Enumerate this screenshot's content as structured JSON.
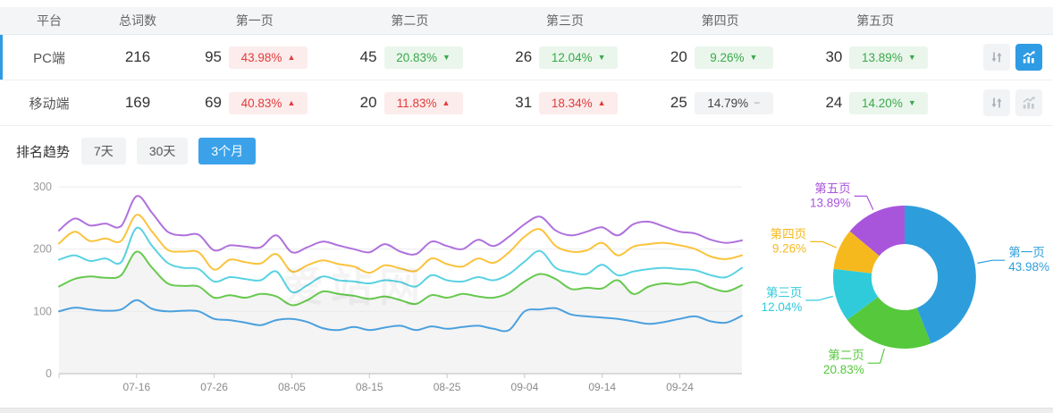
{
  "accent": "#2e9be5",
  "watermark": "爱站网",
  "table": {
    "headers": [
      "平台",
      "总词数",
      "第一页",
      "第二页",
      "第三页",
      "第四页",
      "第五页"
    ],
    "rows": [
      {
        "platform": "PC端",
        "total": "216",
        "selected": true,
        "chart_active": true,
        "pages": [
          {
            "count": "95",
            "pct": "43.98%",
            "trend": "up",
            "tone": "red"
          },
          {
            "count": "45",
            "pct": "20.83%",
            "trend": "down",
            "tone": "green"
          },
          {
            "count": "26",
            "pct": "12.04%",
            "trend": "down",
            "tone": "green"
          },
          {
            "count": "20",
            "pct": "9.26%",
            "trend": "down",
            "tone": "green"
          },
          {
            "count": "30",
            "pct": "13.89%",
            "trend": "down",
            "tone": "green"
          }
        ]
      },
      {
        "platform": "移动端",
        "total": "169",
        "selected": false,
        "chart_active": false,
        "pages": [
          {
            "count": "69",
            "pct": "40.83%",
            "trend": "up",
            "tone": "red"
          },
          {
            "count": "20",
            "pct": "11.83%",
            "trend": "up",
            "tone": "red"
          },
          {
            "count": "31",
            "pct": "18.34%",
            "trend": "up",
            "tone": "red"
          },
          {
            "count": "25",
            "pct": "14.79%",
            "trend": "flat",
            "tone": "gray"
          },
          {
            "count": "24",
            "pct": "14.20%",
            "trend": "down",
            "tone": "green"
          }
        ]
      }
    ]
  },
  "trend": {
    "title": "排名趋势",
    "tabs": [
      {
        "label": "7天",
        "active": false
      },
      {
        "label": "30天",
        "active": false
      },
      {
        "label": "3个月",
        "active": true
      }
    ]
  },
  "chart_data": [
    {
      "type": "line",
      "title": "排名趋势 (3个月)",
      "ylim": [
        0,
        300
      ],
      "yticks": [
        0,
        100,
        200,
        300
      ],
      "grid": true,
      "legend_position": "none",
      "total_days": 88,
      "point_step_days": 2,
      "x_ticks": [
        {
          "label": "07-16",
          "day": 10
        },
        {
          "label": "07-26",
          "day": 20
        },
        {
          "label": "08-05",
          "day": 30
        },
        {
          "label": "08-15",
          "day": 40
        },
        {
          "label": "08-25",
          "day": 50
        },
        {
          "label": "09-04",
          "day": 60
        },
        {
          "label": "09-14",
          "day": 70
        },
        {
          "label": "09-24",
          "day": 80
        }
      ],
      "series": [
        {
          "name": "第一页",
          "color": "#4ba0de",
          "area": false,
          "values": [
            100,
            106,
            103,
            101,
            103,
            118,
            104,
            100,
            101,
            100,
            88,
            86,
            82,
            78,
            86,
            88,
            83,
            73,
            70,
            75,
            70,
            74,
            77,
            70,
            76,
            72,
            75,
            77,
            72,
            70,
            100,
            103,
            105,
            95,
            92,
            90,
            88,
            84,
            80,
            83,
            88,
            92,
            84,
            82,
            93
          ]
        },
        {
          "name": "第二页",
          "color": "#67c94f",
          "area": true,
          "values": [
            140,
            152,
            156,
            154,
            158,
            196,
            170,
            145,
            141,
            140,
            122,
            126,
            122,
            128,
            124,
            110,
            118,
            132,
            128,
            125,
            120,
            124,
            118,
            112,
            126,
            122,
            128,
            124,
            122,
            130,
            148,
            160,
            152,
            136,
            138,
            137,
            150,
            128,
            140,
            145,
            143,
            147,
            138,
            132,
            142
          ]
        },
        {
          "name": "第三页",
          "color": "#59d2e2",
          "area": false,
          "values": [
            183,
            190,
            181,
            185,
            179,
            234,
            205,
            178,
            170,
            168,
            148,
            155,
            152,
            150,
            164,
            131,
            142,
            156,
            150,
            148,
            145,
            150,
            147,
            140,
            158,
            150,
            148,
            155,
            150,
            160,
            180,
            197,
            170,
            163,
            160,
            175,
            158,
            164,
            168,
            170,
            168,
            166,
            158,
            155,
            170
          ]
        },
        {
          "name": "第四页",
          "color": "#fac33c",
          "area": false,
          "values": [
            209,
            228,
            213,
            217,
            213,
            255,
            228,
            199,
            196,
            195,
            167,
            183,
            179,
            177,
            192,
            164,
            174,
            182,
            176,
            172,
            162,
            174,
            169,
            165,
            185,
            176,
            172,
            185,
            178,
            195,
            220,
            232,
            205,
            196,
            198,
            210,
            190,
            204,
            208,
            210,
            206,
            200,
            188,
            184,
            190
          ]
        },
        {
          "name": "第五页",
          "color": "#af71dc",
          "area": false,
          "values": [
            230,
            249,
            238,
            241,
            237,
            285,
            258,
            228,
            222,
            223,
            198,
            206,
            204,
            203,
            222,
            195,
            203,
            212,
            206,
            200,
            195,
            208,
            196,
            192,
            212,
            205,
            200,
            215,
            205,
            220,
            240,
            252,
            230,
            222,
            228,
            235,
            222,
            240,
            244,
            236,
            228,
            225,
            215,
            210,
            214
          ]
        }
      ]
    },
    {
      "type": "pie",
      "donut": true,
      "slices": [
        {
          "label": "第一页",
          "value": 43.98,
          "pct_label": "43.98%",
          "color": "#2d9edb"
        },
        {
          "label": "第二页",
          "value": 20.83,
          "pct_label": "20.83%",
          "color": "#55c83c"
        },
        {
          "label": "第三页",
          "value": 12.04,
          "pct_label": "12.04%",
          "color": "#30cbdb"
        },
        {
          "label": "第四页",
          "value": 9.26,
          "pct_label": "9.26%",
          "color": "#f5b91e"
        },
        {
          "label": "第五页",
          "value": 13.89,
          "pct_label": "13.89%",
          "color": "#a855dc"
        }
      ]
    }
  ],
  "icons": {
    "sort": "up-down-arrows-icon",
    "chart": "bar-chart-trend-icon",
    "trend_up": "▲",
    "trend_down": "▼",
    "trend_flat": "−"
  }
}
